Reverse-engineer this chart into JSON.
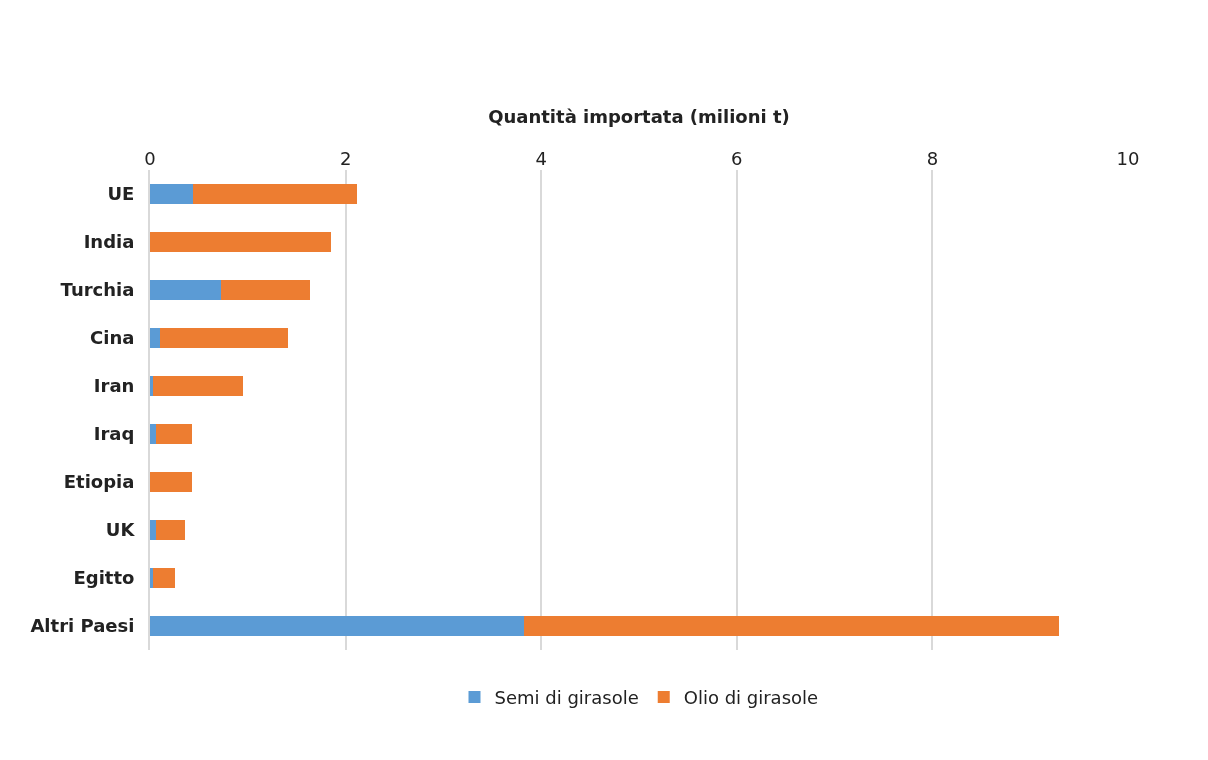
{
  "chart_data": {
    "type": "bar",
    "orientation": "horizontal",
    "stacked": true,
    "xlabel": "Quantità importata (milioni t)",
    "categories": [
      "UE",
      "India",
      "Turchia",
      "Cina",
      "Iran",
      "Iraq",
      "Etiopia",
      "UK",
      "Egitto",
      "Altri Paesi"
    ],
    "series": [
      {
        "name": "Semi di girasole",
        "color": "#5b9bd5",
        "values": [
          0.44,
          0,
          0.73,
          0.1,
          0.03,
          0.06,
          0,
          0.06,
          0.03,
          3.82
        ]
      },
      {
        "name": "Olio di girasole",
        "color": "#ed7d31",
        "values": [
          1.68,
          1.85,
          0.91,
          1.31,
          0.92,
          0.37,
          0.43,
          0.3,
          0.23,
          5.47
        ]
      }
    ],
    "xlim": [
      0,
      10
    ],
    "xticks": [
      0,
      2,
      4,
      6,
      8,
      10
    ],
    "grid": "x",
    "legend": "bottom"
  }
}
